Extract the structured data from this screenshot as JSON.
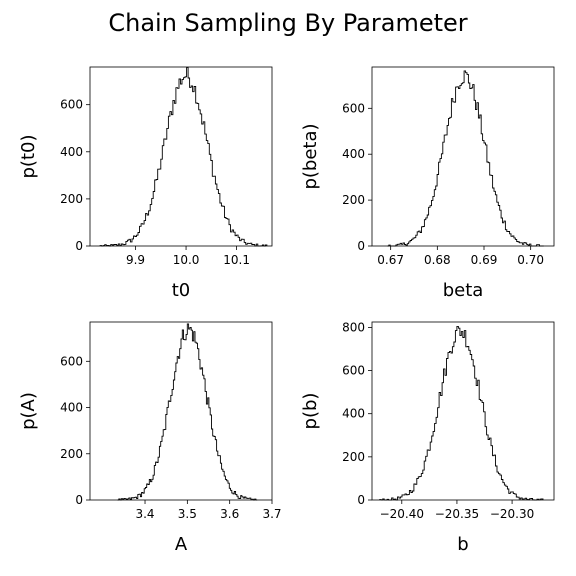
{
  "figure": {
    "title": "Chain Sampling By Parameter"
  },
  "chart_data": [
    {
      "type": "histogram",
      "xlabel": "t0",
      "ylabel": "p(t0)",
      "xlim": [
        9.81,
        10.17
      ],
      "ylim": [
        0,
        760
      ],
      "xticks": [
        9.9,
        10.0,
        10.1
      ],
      "xtick_labels": [
        "9.9",
        "10.0",
        "10.1"
      ],
      "yticks": [
        0,
        200,
        400,
        600
      ],
      "ytick_labels": [
        "0",
        "200",
        "400",
        "600"
      ],
      "mean": 10.0,
      "std": 0.042,
      "peak": 725,
      "support": [
        9.83,
        10.16
      ],
      "grid": false,
      "legend": "none"
    },
    {
      "type": "histogram",
      "xlabel": "beta",
      "ylabel": "p(beta)",
      "xlim": [
        0.666,
        0.705
      ],
      "ylim": [
        0,
        780
      ],
      "xticks": [
        0.67,
        0.68,
        0.69,
        0.7
      ],
      "xtick_labels": [
        "0.67",
        "0.68",
        "0.69",
        "0.70"
      ],
      "yticks": [
        0,
        200,
        400,
        600
      ],
      "ytick_labels": [
        "0",
        "200",
        "400",
        "600"
      ],
      "mean": 0.6858,
      "std": 0.0043,
      "peak": 742,
      "support": [
        0.6693,
        0.7028
      ],
      "grid": false,
      "legend": "none"
    },
    {
      "type": "histogram",
      "xlabel": "A",
      "ylabel": "p(A)",
      "xlim": [
        3.27,
        3.7
      ],
      "ylim": [
        0,
        770
      ],
      "xticks": [
        3.4,
        3.5,
        3.6,
        3.7
      ],
      "xtick_labels": [
        "3.4",
        "3.5",
        "3.6",
        "3.7"
      ],
      "yticks": [
        0,
        200,
        400,
        600
      ],
      "ytick_labels": [
        "0",
        "200",
        "400",
        "600"
      ],
      "mean": 3.503,
      "std": 0.043,
      "peak": 740,
      "support": [
        3.335,
        3.665
      ],
      "grid": false,
      "legend": "none"
    },
    {
      "type": "histogram",
      "xlabel": "b",
      "ylabel": "p(b)",
      "xlim": [
        -20.427,
        -20.262
      ],
      "ylim": [
        0,
        825
      ],
      "xticks": [
        -20.4,
        -20.35,
        -20.3
      ],
      "xtick_labels": [
        "−20.40",
        "−20.35",
        "−20.30"
      ],
      "yticks": [
        0,
        200,
        400,
        600,
        800
      ],
      "ytick_labels": [
        "0",
        "200",
        "400",
        "600",
        "800"
      ],
      "mean": -20.347,
      "std": 0.0185,
      "peak": 785,
      "support": [
        -20.42,
        -20.272
      ],
      "grid": false,
      "legend": "none"
    }
  ]
}
